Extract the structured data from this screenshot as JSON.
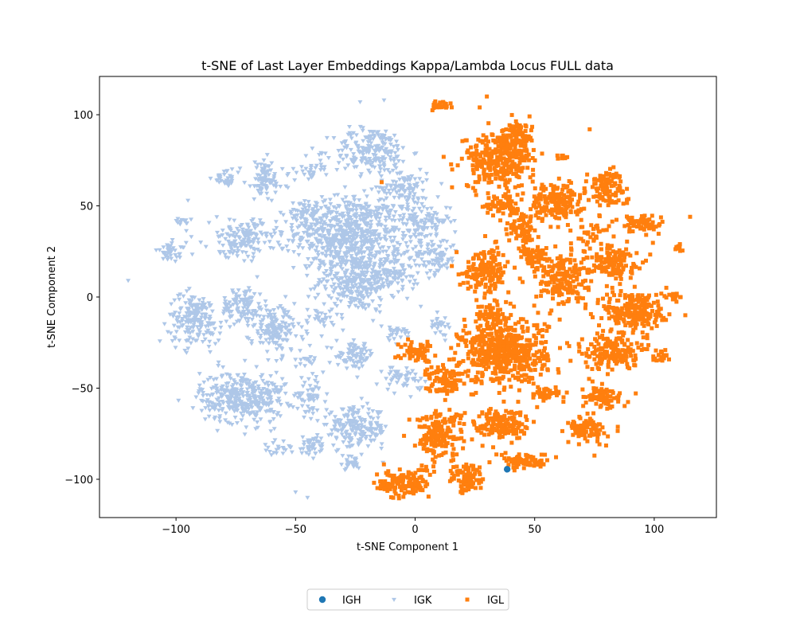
{
  "chart_data": {
    "type": "scatter",
    "title": "t-SNE of Last Layer Embeddings Kappa/Lambda Locus FULL data",
    "xlabel": "t-SNE Component 1",
    "ylabel": "t-SNE Component 2",
    "xlim": [
      -132,
      126
    ],
    "ylim": [
      -121,
      121
    ],
    "xticks": [
      -100,
      -50,
      0,
      50,
      100
    ],
    "xtick_labels": [
      "−100",
      "−50",
      "0",
      "50",
      "100"
    ],
    "yticks": [
      -100,
      -50,
      0,
      50,
      100
    ],
    "ytick_labels": [
      "−100",
      "−50",
      "0",
      "50",
      "100"
    ],
    "grid": false,
    "legend_position": "bottom-center",
    "series": [
      {
        "name": "IGH",
        "marker": "circle",
        "color": "#1f77b4",
        "points": [
          [
            38.5,
            -94.5
          ]
        ]
      },
      {
        "name": "IGK",
        "marker": "triangle-down",
        "color": "#aec7e8",
        "clusters": [
          {
            "cx": -28,
            "cy": 35,
            "rx": 22,
            "ry": 20,
            "n": 650
          },
          {
            "cx": -25,
            "cy": 8,
            "rx": 16,
            "ry": 16,
            "n": 300
          },
          {
            "cx": -18,
            "cy": 80,
            "rx": 16,
            "ry": 13,
            "n": 200
          },
          {
            "cx": -5,
            "cy": 60,
            "rx": 10,
            "ry": 10,
            "n": 100
          },
          {
            "cx": 3,
            "cy": 42,
            "rx": 12,
            "ry": 10,
            "n": 120
          },
          {
            "cx": 8,
            "cy": 22,
            "rx": 10,
            "ry": 10,
            "n": 90
          },
          {
            "cx": -8,
            "cy": 15,
            "rx": 10,
            "ry": 14,
            "n": 100
          },
          {
            "cx": -45,
            "cy": 45,
            "rx": 8,
            "ry": 8,
            "n": 60
          },
          {
            "cx": -72,
            "cy": -55,
            "rx": 18,
            "ry": 14,
            "n": 380
          },
          {
            "cx": -92,
            "cy": -12,
            "rx": 11,
            "ry": 14,
            "n": 190
          },
          {
            "cx": -72,
            "cy": -5,
            "rx": 9,
            "ry": 11,
            "n": 110
          },
          {
            "cx": -58,
            "cy": -18,
            "rx": 11,
            "ry": 13,
            "n": 160
          },
          {
            "cx": -72,
            "cy": 32,
            "rx": 14,
            "ry": 10,
            "n": 160
          },
          {
            "cx": -63,
            "cy": 64,
            "rx": 8,
            "ry": 11,
            "n": 90
          },
          {
            "cx": -79,
            "cy": 65,
            "rx": 6,
            "ry": 5,
            "n": 35
          },
          {
            "cx": -102,
            "cy": 25,
            "rx": 6,
            "ry": 5,
            "n": 40
          },
          {
            "cx": -97,
            "cy": 41,
            "rx": 3,
            "ry": 3,
            "n": 14
          },
          {
            "cx": -44,
            "cy": -54,
            "rx": 6,
            "ry": 9,
            "n": 50
          },
          {
            "cx": -25,
            "cy": -72,
            "rx": 14,
            "ry": 11,
            "n": 200
          },
          {
            "cx": -25,
            "cy": -32,
            "rx": 8,
            "ry": 7,
            "n": 80
          },
          {
            "cx": -44,
            "cy": -82,
            "rx": 7,
            "ry": 5,
            "n": 40
          },
          {
            "cx": -27,
            "cy": -91,
            "rx": 5,
            "ry": 4,
            "n": 28
          },
          {
            "cx": -58,
            "cy": -84,
            "rx": 5,
            "ry": 4,
            "n": 20
          },
          {
            "cx": -43,
            "cy": 70,
            "rx": 6,
            "ry": 5,
            "n": 30
          },
          {
            "cx": -5,
            "cy": -45,
            "rx": 8,
            "ry": 7,
            "n": 50
          },
          {
            "cx": 10,
            "cy": -15,
            "rx": 5,
            "ry": 5,
            "n": 25
          },
          {
            "cx": -8,
            "cy": -20,
            "rx": 6,
            "ry": 5,
            "n": 25
          },
          {
            "cx": -38,
            "cy": -12,
            "rx": 6,
            "ry": 6,
            "n": 25
          },
          {
            "cx": -45,
            "cy": -35,
            "rx": 4,
            "ry": 4,
            "n": 14
          }
        ],
        "points": [
          [
            -120,
            9
          ],
          [
            -95,
            53
          ],
          [
            -50,
            -107
          ],
          [
            -45,
            -110
          ],
          [
            -23,
            107
          ],
          [
            -13,
            108
          ],
          [
            -58,
            -35
          ],
          [
            -38,
            -70
          ]
        ]
      },
      {
        "name": "IGL",
        "marker": "square",
        "color": "#ff7f0e",
        "clusters": [
          {
            "cx": 37,
            "cy": -30,
            "rx": 18,
            "ry": 17,
            "n": 560
          },
          {
            "cx": 35,
            "cy": 75,
            "rx": 15,
            "ry": 15,
            "n": 300
          },
          {
            "cx": 30,
            "cy": 15,
            "rx": 10,
            "ry": 12,
            "n": 160
          },
          {
            "cx": 59,
            "cy": 52,
            "rx": 11,
            "ry": 10,
            "n": 190
          },
          {
            "cx": 61,
            "cy": 10,
            "rx": 11,
            "ry": 16,
            "n": 200
          },
          {
            "cx": 92,
            "cy": -8,
            "rx": 13,
            "ry": 12,
            "n": 240
          },
          {
            "cx": 82,
            "cy": -30,
            "rx": 11,
            "ry": 10,
            "n": 170
          },
          {
            "cx": 82,
            "cy": 20,
            "rx": 11,
            "ry": 9,
            "n": 140
          },
          {
            "cx": 80,
            "cy": 60,
            "rx": 8,
            "ry": 10,
            "n": 110
          },
          {
            "cx": 95,
            "cy": 40,
            "rx": 9,
            "ry": 6,
            "n": 70
          },
          {
            "cx": 10,
            "cy": -75,
            "rx": 10,
            "ry": 13,
            "n": 170
          },
          {
            "cx": 22,
            "cy": -100,
            "rx": 7,
            "ry": 8,
            "n": 90
          },
          {
            "cx": -5,
            "cy": -102,
            "rx": 11,
            "ry": 8,
            "n": 130
          },
          {
            "cx": 37,
            "cy": -70,
            "rx": 12,
            "ry": 9,
            "n": 160
          },
          {
            "cx": 46,
            "cy": -90,
            "rx": 10,
            "ry": 4,
            "n": 80
          },
          {
            "cx": 72,
            "cy": -73,
            "rx": 8,
            "ry": 7,
            "n": 90
          },
          {
            "cx": 78,
            "cy": -55,
            "rx": 9,
            "ry": 6,
            "n": 80
          },
          {
            "cx": 13,
            "cy": -45,
            "rx": 8,
            "ry": 8,
            "n": 90
          },
          {
            "cx": 1,
            "cy": -30,
            "rx": 7,
            "ry": 7,
            "n": 60
          },
          {
            "cx": 44,
            "cy": 37,
            "rx": 7,
            "ry": 8,
            "n": 70
          },
          {
            "cx": 50,
            "cy": 22,
            "rx": 6,
            "ry": 5,
            "n": 50
          },
          {
            "cx": 43,
            "cy": 88,
            "rx": 6,
            "ry": 8,
            "n": 80
          },
          {
            "cx": 55,
            "cy": -53,
            "rx": 7,
            "ry": 5,
            "n": 40
          },
          {
            "cx": 103,
            "cy": -32,
            "rx": 4,
            "ry": 4,
            "n": 22
          },
          {
            "cx": 74,
            "cy": 35,
            "rx": 5,
            "ry": 4,
            "n": 25
          },
          {
            "cx": 108,
            "cy": 0,
            "rx": 3,
            "ry": 3,
            "n": 14
          },
          {
            "cx": 110,
            "cy": 27,
            "rx": 2,
            "ry": 3,
            "n": 12
          },
          {
            "cx": 12,
            "cy": 105,
            "rx": 5,
            "ry": 2,
            "n": 24
          },
          {
            "cx": 37,
            "cy": 50,
            "rx": 8,
            "ry": 7,
            "n": 70
          },
          {
            "cx": 62,
            "cy": 77,
            "rx": 2,
            "ry": 2,
            "n": 8
          },
          {
            "cx": 32,
            "cy": -8,
            "rx": 6,
            "ry": 5,
            "n": 40
          }
        ],
        "points": [
          [
            115,
            44
          ],
          [
            113,
            -10
          ],
          [
            27,
            104
          ],
          [
            30,
            110
          ],
          [
            73,
            92
          ],
          [
            -14,
            63
          ],
          [
            75,
            -87
          ],
          [
            65,
            -35
          ],
          [
            20,
            -83
          ]
        ]
      }
    ]
  }
}
